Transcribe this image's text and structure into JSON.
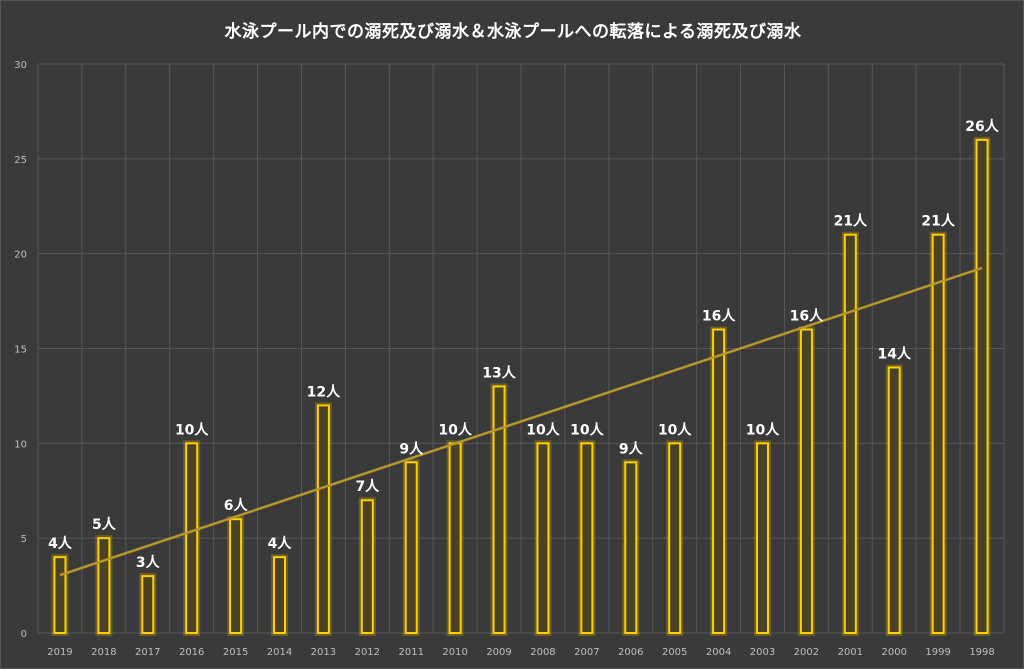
{
  "chart_data": {
    "type": "bar",
    "title": "水泳プール内での溺死及び溺水＆水泳プールへの転落による溺死及び溺水",
    "categories": [
      "2019",
      "2018",
      "2017",
      "2016",
      "2015",
      "2014",
      "2013",
      "2012",
      "2011",
      "2010",
      "2009",
      "2008",
      "2007",
      "2006",
      "2005",
      "2004",
      "2003",
      "2002",
      "2001",
      "2000",
      "1999",
      "1998"
    ],
    "series": [
      {
        "values": [
          4,
          5,
          3,
          10,
          6,
          4,
          12,
          7,
          9,
          10,
          13,
          10,
          10,
          9,
          10,
          16,
          10,
          16,
          21,
          14,
          21,
          26
        ],
        "data_labels": [
          "4人",
          "5人",
          "3人",
          "10人",
          "6人",
          "4人",
          "12人",
          "7人",
          "9人",
          "10人",
          "13人",
          "10人",
          "10人",
          "9人",
          "10人",
          "16人",
          "10人",
          "16人",
          "21人",
          "14人",
          "21人",
          "26人"
        ]
      }
    ],
    "y_ticks": [
      "0",
      "5",
      "10",
      "15",
      "20",
      "25",
      "30"
    ],
    "ylim": [
      0,
      30
    ],
    "trendline": {
      "type": "linear",
      "start": 3.05,
      "end": 19.25
    },
    "grid": true,
    "legend": "none",
    "colors": {
      "background": "#3a3a3a",
      "bar_outline": "#ffd000",
      "bar_fill": "#494224",
      "trendline": "#b8962e",
      "grid": "#575757",
      "text": "#ffffff",
      "tick_text": "#bfbfbf"
    }
  }
}
